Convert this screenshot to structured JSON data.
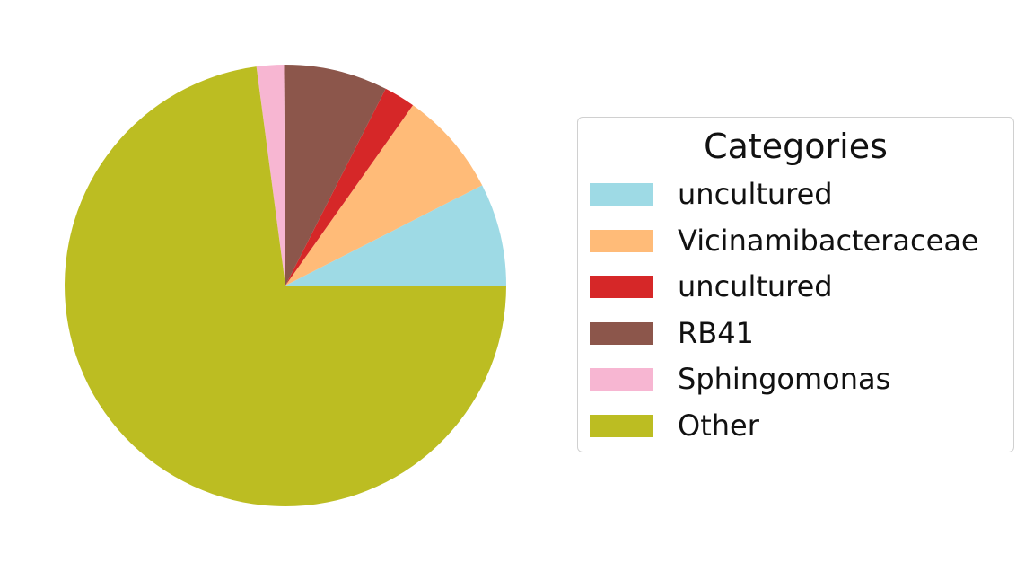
{
  "chart_data": {
    "type": "pie",
    "title": "",
    "legend_title": "Categories",
    "legend_position": "right",
    "start_angle_deg": 0,
    "direction": "counterclockwise",
    "slices": [
      {
        "label": "uncultured",
        "value": 7.5,
        "color": "#9edae5"
      },
      {
        "label": "Vicinamibacteraceae",
        "value": 7.7,
        "color": "#ffbb78"
      },
      {
        "label": "uncultured",
        "value": 2.3,
        "color": "#d62728"
      },
      {
        "label": "RB41",
        "value": 7.6,
        "color": "#8c564b"
      },
      {
        "label": "Sphingomonas",
        "value": 2.0,
        "color": "#f7b6d2"
      },
      {
        "label": "Other",
        "value": 72.9,
        "color": "#bcbd22"
      }
    ]
  }
}
